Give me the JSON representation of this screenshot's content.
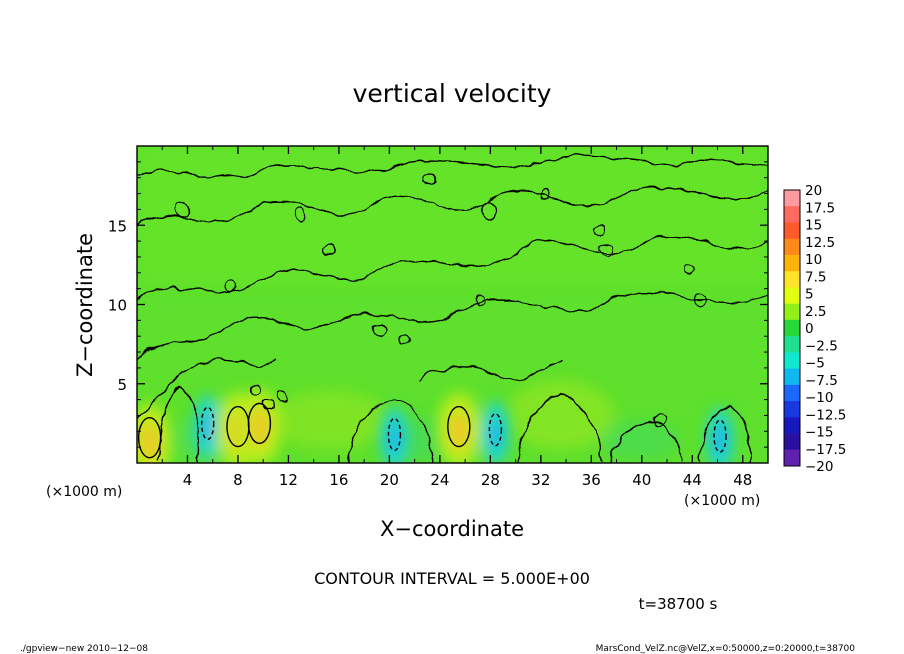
{
  "chart_data": {
    "type": "heatmap",
    "title": "vertical velocity",
    "xlabel": "X−coordinate",
    "ylabel": "Z−coordinate",
    "x_unit": "(×1000 m)",
    "x_unit_right": "(×1000 m)",
    "xlim": [
      0,
      50
    ],
    "ylim": [
      0,
      20
    ],
    "x_ticks": [
      4,
      8,
      12,
      16,
      20,
      24,
      28,
      32,
      36,
      40,
      44,
      48
    ],
    "x_tick_labels": [
      "4",
      "8",
      "12",
      "16",
      "20",
      "24",
      "28",
      "32",
      "36",
      "40",
      "44",
      "48"
    ],
    "y_ticks": [
      5,
      10,
      15
    ],
    "y_tick_labels": [
      "5",
      "10",
      "15"
    ],
    "contour_interval": "CONTOUR INTERVAL = 5.000E+00",
    "time_label": "t=38700 s",
    "colorbar": {
      "labels": [
        "20",
        "17.5",
        "15",
        "12.5",
        "10",
        "7.5",
        "5",
        "2.5",
        "0",
        "−2.5",
        "−5",
        "−7.5",
        "−10",
        "−12.5",
        "−15",
        "−17.5",
        "−20"
      ],
      "colors": [
        "#ff9aa0",
        "#ff6a60",
        "#ff5a2a",
        "#ff8a1a",
        "#ffb20a",
        "#ffe22a",
        "#e0ff10",
        "#90f018",
        "#28d838",
        "#20e090",
        "#10e8d0",
        "#10b8f0",
        "#1a68ff",
        "#1838e0",
        "#1818c0",
        "#2a10a0",
        "#6020b0"
      ]
    },
    "features": [
      {
        "x": 1.0,
        "z": 1.6,
        "sign": "positive"
      },
      {
        "x": 5.6,
        "z": 2.5,
        "sign": "negative"
      },
      {
        "x": 8.0,
        "z": 2.3,
        "sign": "positive"
      },
      {
        "x": 9.7,
        "z": 2.5,
        "sign": "positive"
      },
      {
        "x": 20.4,
        "z": 1.8,
        "sign": "negative"
      },
      {
        "x": 25.5,
        "z": 2.3,
        "sign": "positive"
      },
      {
        "x": 28.4,
        "z": 2.1,
        "sign": "negative"
      },
      {
        "x": 46.2,
        "z": 1.7,
        "sign": "negative"
      }
    ]
  },
  "footer": {
    "left": "./gpview−new   2010−12−08",
    "right": "MarsCond_VelZ.nc@VelZ,x=0:50000,z=0:20000,t=38700"
  }
}
